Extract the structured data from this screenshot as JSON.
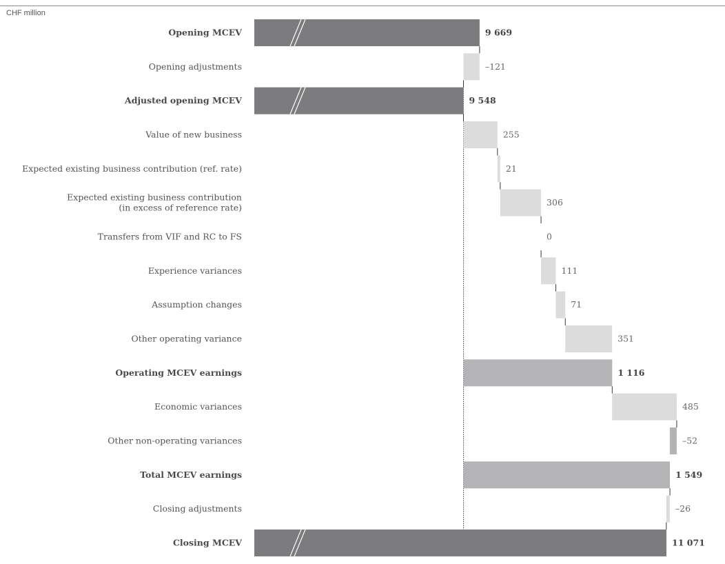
{
  "chart_data": {
    "type": "bar",
    "subtype": "waterfall",
    "unit_label": "CHF million",
    "axis_break_on_full_bars": true,
    "colors": {
      "total_dark": "#7c7c7e",
      "total_medium": "#b4b4b6",
      "increase": "#dcdcdc",
      "decrease": "#b4b4b6",
      "connector": "#333333"
    },
    "rows": [
      {
        "label": "Opening MCEV",
        "value": 9669,
        "value_label": "9 669",
        "kind": "total",
        "shade": "dark",
        "bold": true
      },
      {
        "label": "Opening adjustments",
        "value": -121,
        "value_label": "–121",
        "kind": "delta",
        "bold": false
      },
      {
        "label": "Adjusted opening MCEV",
        "value": 9548,
        "value_label": "9 548",
        "kind": "total",
        "shade": "dark",
        "bold": true
      },
      {
        "label": "Value of new business",
        "value": 255,
        "value_label": "255",
        "kind": "delta",
        "bold": false
      },
      {
        "label": "Expected existing business contribution (ref. rate)",
        "value": 21,
        "value_label": "21",
        "kind": "delta",
        "bold": false
      },
      {
        "label": [
          "Expected existing business contribution",
          "(in excess of reference rate)"
        ],
        "value": 306,
        "value_label": "306",
        "kind": "delta",
        "bold": false
      },
      {
        "label": "Transfers from VIF and RC to FS",
        "value": 0,
        "value_label": "0",
        "kind": "delta",
        "bold": false
      },
      {
        "label": "Experience variances",
        "value": 111,
        "value_label": "111",
        "kind": "delta",
        "bold": false
      },
      {
        "label": "Assumption changes",
        "value": 71,
        "value_label": "71",
        "kind": "delta",
        "bold": false
      },
      {
        "label": "Other operating variance",
        "value": 351,
        "value_label": "351",
        "kind": "delta",
        "bold": false
      },
      {
        "label": "Operating MCEV earnings",
        "value": 1116,
        "value_label": "1 116",
        "kind": "subtotal",
        "shade": "medium",
        "bold": true
      },
      {
        "label": "Economic variances",
        "value": 485,
        "value_label": "485",
        "kind": "delta",
        "bold": false
      },
      {
        "label": "Other non-operating variances",
        "value": -52,
        "value_label": "–52",
        "kind": "delta",
        "bold": false
      },
      {
        "label": "Total MCEV earnings",
        "value": 1549,
        "value_label": "1 549",
        "kind": "subtotal",
        "shade": "medium",
        "bold": true
      },
      {
        "label": "Closing adjustments",
        "value": -26,
        "value_label": "–26",
        "kind": "delta",
        "bold": false
      },
      {
        "label": "Closing MCEV",
        "value": 11071,
        "value_label": "11 071",
        "kind": "total",
        "shade": "dark",
        "bold": true
      }
    ]
  }
}
